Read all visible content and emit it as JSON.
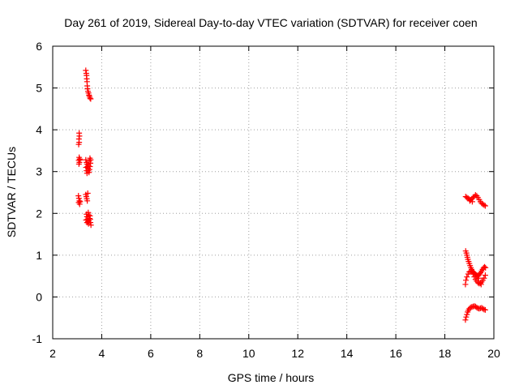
{
  "chart_data": {
    "type": "scatter",
    "title": "Day 261 of 2019, Sidereal Day-to-day VTEC variation (SDTVAR) for receiver coen",
    "xlabel": "GPS time / hours",
    "ylabel": "SDTVAR / TECUs",
    "xlim": [
      2,
      20
    ],
    "ylim": [
      -1,
      6
    ],
    "xticks": [
      2,
      4,
      6,
      8,
      10,
      12,
      14,
      16,
      18,
      20
    ],
    "yticks": [
      -1,
      0,
      1,
      2,
      3,
      4,
      5,
      6
    ],
    "xtick_labels": [
      "2",
      "4",
      "6",
      "8",
      "10",
      "12",
      "14",
      "16",
      "18",
      "20"
    ],
    "ytick_labels": [
      "-1",
      "0",
      "1",
      "2",
      "3",
      "4",
      "5",
      "6"
    ],
    "grid": true,
    "marker": "plus",
    "color": "#ff0000",
    "points": [
      [
        3.35,
        5.42
      ],
      [
        3.37,
        5.35
      ],
      [
        3.38,
        5.3
      ],
      [
        3.39,
        5.22
      ],
      [
        3.4,
        5.15
      ],
      [
        3.41,
        5.05
      ],
      [
        3.42,
        4.98
      ],
      [
        3.44,
        4.92
      ],
      [
        3.46,
        4.88
      ],
      [
        3.48,
        4.83
      ],
      [
        3.5,
        4.8
      ],
      [
        3.52,
        4.76
      ],
      [
        3.55,
        4.74
      ],
      [
        3.08,
        3.92
      ],
      [
        3.09,
        3.85
      ],
      [
        3.07,
        3.78
      ],
      [
        3.08,
        3.7
      ],
      [
        3.06,
        3.65
      ],
      [
        3.08,
        3.34
      ],
      [
        3.1,
        3.3
      ],
      [
        3.12,
        3.28
      ],
      [
        3.06,
        3.27
      ],
      [
        3.09,
        3.22
      ],
      [
        3.07,
        3.18
      ],
      [
        3.35,
        3.28
      ],
      [
        3.38,
        3.22
      ],
      [
        3.4,
        3.18
      ],
      [
        3.42,
        3.12
      ],
      [
        3.44,
        3.08
      ],
      [
        3.45,
        3.02
      ],
      [
        3.48,
        2.98
      ],
      [
        3.5,
        3.05
      ],
      [
        3.52,
        3.12
      ],
      [
        3.54,
        3.2
      ],
      [
        3.55,
        3.28
      ],
      [
        3.52,
        3.32
      ],
      [
        3.36,
        3.1
      ],
      [
        3.38,
        3.02
      ],
      [
        3.4,
        2.96
      ],
      [
        3.46,
        3.15
      ],
      [
        3.49,
        3.25
      ],
      [
        3.05,
        2.42
      ],
      [
        3.07,
        2.36
      ],
      [
        3.09,
        2.3
      ],
      [
        3.06,
        2.26
      ],
      [
        3.1,
        2.22
      ],
      [
        3.12,
        2.28
      ],
      [
        3.35,
        2.45
      ],
      [
        3.37,
        2.4
      ],
      [
        3.39,
        2.35
      ],
      [
        3.41,
        2.3
      ],
      [
        3.43,
        2.48
      ],
      [
        3.38,
        1.98
      ],
      [
        3.4,
        1.92
      ],
      [
        3.42,
        1.86
      ],
      [
        3.44,
        1.8
      ],
      [
        3.46,
        1.75
      ],
      [
        3.48,
        1.82
      ],
      [
        3.5,
        1.88
      ],
      [
        3.52,
        1.94
      ],
      [
        3.54,
        1.78
      ],
      [
        3.56,
        1.72
      ],
      [
        3.45,
        2.02
      ],
      [
        3.47,
        1.96
      ],
      [
        3.4,
        1.78
      ],
      [
        3.36,
        1.84
      ],
      [
        3.53,
        1.86
      ],
      [
        18.85,
        2.4
      ],
      [
        18.9,
        2.38
      ],
      [
        18.95,
        2.36
      ],
      [
        19.0,
        2.34
      ],
      [
        19.05,
        2.32
      ],
      [
        19.1,
        2.35
      ],
      [
        19.15,
        2.38
      ],
      [
        19.2,
        2.4
      ],
      [
        19.25,
        2.44
      ],
      [
        19.3,
        2.42
      ],
      [
        19.35,
        2.38
      ],
      [
        19.4,
        2.33
      ],
      [
        19.45,
        2.28
      ],
      [
        19.5,
        2.24
      ],
      [
        19.55,
        2.22
      ],
      [
        19.6,
        2.2
      ],
      [
        19.65,
        2.18
      ],
      [
        19.02,
        2.3
      ],
      [
        19.12,
        2.28
      ],
      [
        18.85,
        1.1
      ],
      [
        18.88,
        1.05
      ],
      [
        18.9,
        1.0
      ],
      [
        18.92,
        0.95
      ],
      [
        18.94,
        0.9
      ],
      [
        18.97,
        0.85
      ],
      [
        19.0,
        0.8
      ],
      [
        19.03,
        0.75
      ],
      [
        19.06,
        0.7
      ],
      [
        19.09,
        0.66
      ],
      [
        19.12,
        0.62
      ],
      [
        19.15,
        0.6
      ],
      [
        19.18,
        0.58
      ],
      [
        19.22,
        0.56
      ],
      [
        19.26,
        0.54
      ],
      [
        19.3,
        0.52
      ],
      [
        19.34,
        0.5
      ],
      [
        19.38,
        0.52
      ],
      [
        19.42,
        0.55
      ],
      [
        19.46,
        0.58
      ],
      [
        19.5,
        0.62
      ],
      [
        19.54,
        0.66
      ],
      [
        19.58,
        0.7
      ],
      [
        19.62,
        0.72
      ],
      [
        19.66,
        0.7
      ],
      [
        18.86,
        0.4
      ],
      [
        18.9,
        0.48
      ],
      [
        18.95,
        0.55
      ],
      [
        19.0,
        0.6
      ],
      [
        19.05,
        0.62
      ],
      [
        19.1,
        0.6
      ],
      [
        19.15,
        0.55
      ],
      [
        19.2,
        0.48
      ],
      [
        19.25,
        0.42
      ],
      [
        19.3,
        0.38
      ],
      [
        19.35,
        0.34
      ],
      [
        19.4,
        0.32
      ],
      [
        19.45,
        0.33
      ],
      [
        19.5,
        0.36
      ],
      [
        19.55,
        0.4
      ],
      [
        19.6,
        0.45
      ],
      [
        19.65,
        0.52
      ],
      [
        18.84,
        0.3
      ],
      [
        19.48,
        0.3
      ],
      [
        19.38,
        0.45
      ],
      [
        18.84,
        -0.55
      ],
      [
        18.87,
        -0.48
      ],
      [
        18.9,
        -0.42
      ],
      [
        18.93,
        -0.36
      ],
      [
        18.96,
        -0.32
      ],
      [
        19.0,
        -0.28
      ],
      [
        19.05,
        -0.25
      ],
      [
        19.1,
        -0.24
      ],
      [
        19.15,
        -0.23
      ],
      [
        19.2,
        -0.22
      ],
      [
        19.25,
        -0.23
      ],
      [
        19.3,
        -0.25
      ],
      [
        19.35,
        -0.27
      ],
      [
        19.4,
        -0.28
      ],
      [
        19.45,
        -0.27
      ],
      [
        19.5,
        -0.26
      ],
      [
        19.55,
        -0.28
      ],
      [
        19.6,
        -0.3
      ],
      [
        19.65,
        -0.31
      ]
    ]
  }
}
